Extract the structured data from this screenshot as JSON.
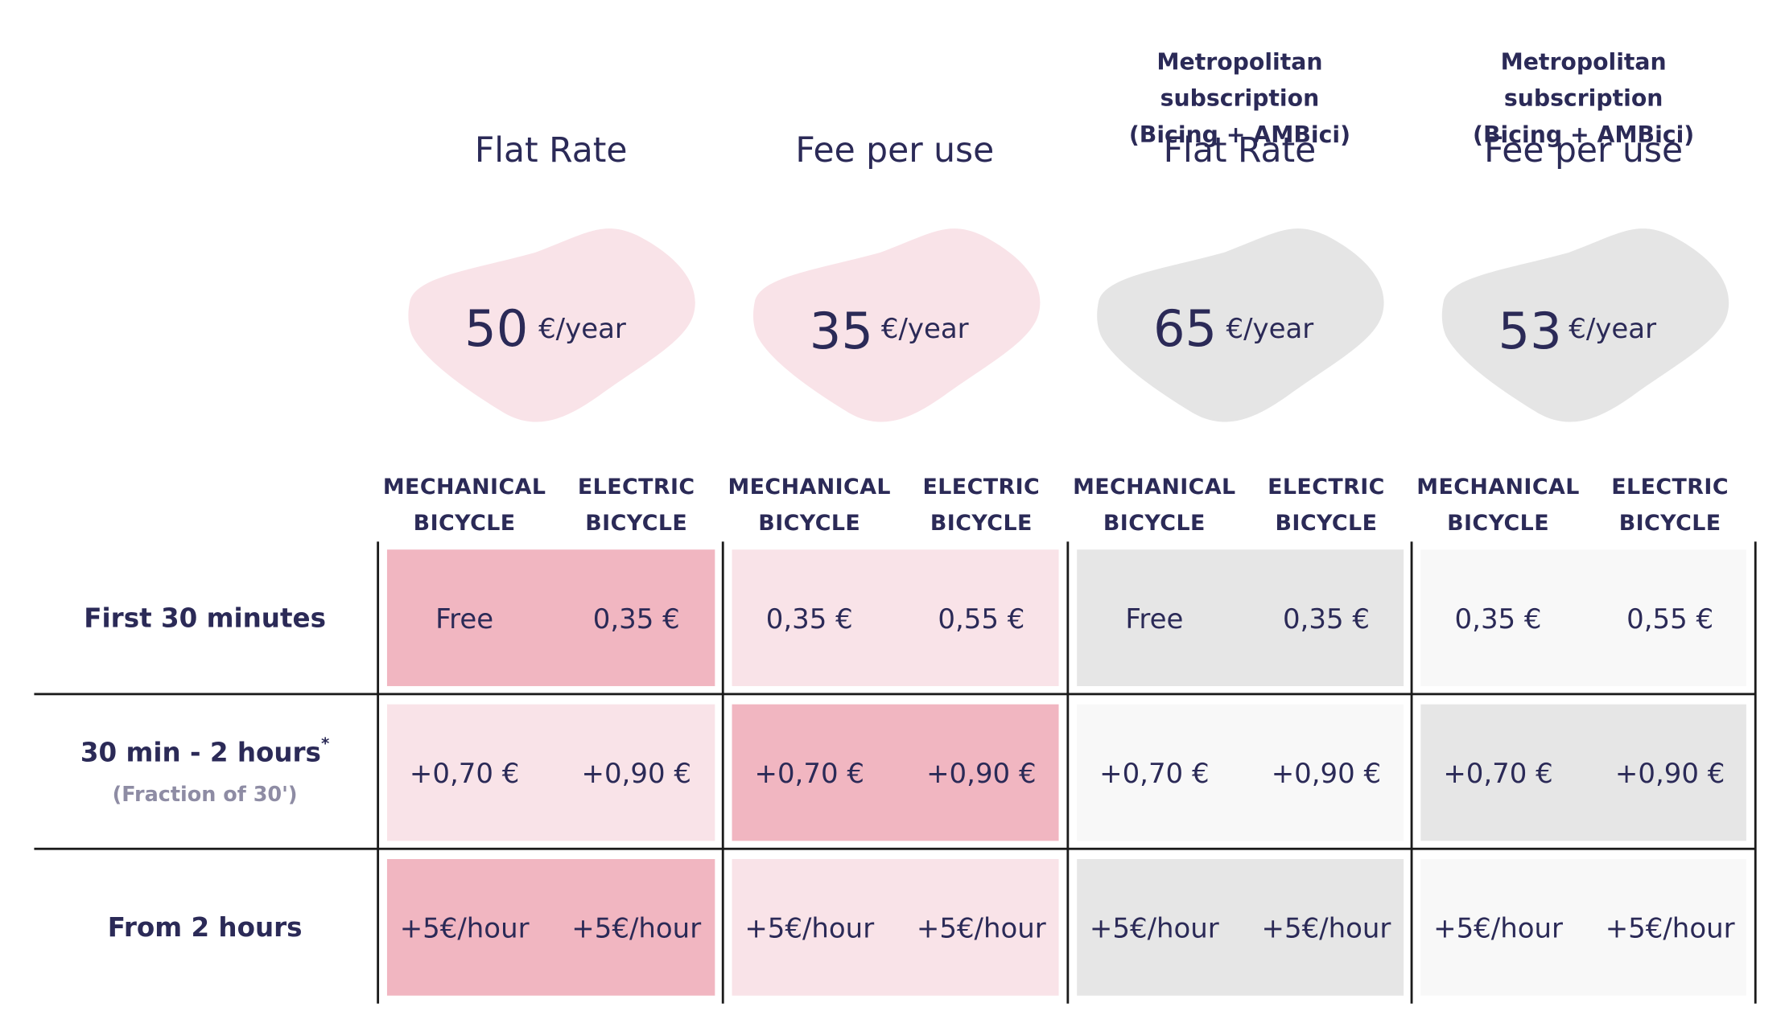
{
  "colors": {
    "text": "#2b2a57",
    "pink_strong": "#f1b6c1",
    "pink_light": "#f9e3e8",
    "gray": "#e6e6e6",
    "gray_light": "#f8f8f8",
    "blob_pink": "#f9e3e8",
    "blob_gray": "#e5e5e5"
  },
  "plans": [
    {
      "metro_line1": "",
      "metro_line2": "",
      "title": "Flat Rate",
      "price": "50",
      "unit": "€/year"
    },
    {
      "metro_line1": "",
      "metro_line2": "",
      "title": "Fee per use",
      "price": "35",
      "unit": "€/year"
    },
    {
      "metro_line1": "Metropolitan subscription",
      "metro_line2": "(Bicing + AMBici)",
      "title": "Flat Rate",
      "price": "65",
      "unit": "€/year"
    },
    {
      "metro_line1": "Metropolitan subscription",
      "metro_line2": "(Bicing + AMBici)",
      "title": "Fee per use",
      "price": "53",
      "unit": "€/year"
    }
  ],
  "bike_headers": {
    "mechanical_line1": "MECHANICAL",
    "mechanical_line2": "BICYCLE",
    "electric_line1": "ELECTRIC",
    "electric_line2": "BICYCLE"
  },
  "rows": [
    {
      "label": "First 30 minutes",
      "note": "",
      "asterisk": "",
      "values": [
        [
          "Free",
          "0,35 €"
        ],
        [
          "0,35 €",
          "0,55 €"
        ],
        [
          "Free",
          "0,35 €"
        ],
        [
          "0,35 €",
          "0,55 €"
        ]
      ]
    },
    {
      "label": "30 min - 2 hours",
      "note": "(Fraction of 30')",
      "asterisk": "*",
      "values": [
        [
          "+0,70 €",
          "+0,90 €"
        ],
        [
          "+0,70 €",
          "+0,90 €"
        ],
        [
          "+0,70 €",
          "+0,90 €"
        ],
        [
          "+0,70 €",
          "+0,90 €"
        ]
      ]
    },
    {
      "label": "From 2 hours",
      "note": "",
      "asterisk": "",
      "values": [
        [
          "+5€/hour",
          "+5€/hour"
        ],
        [
          "+5€/hour",
          "+5€/hour"
        ],
        [
          "+5€/hour",
          "+5€/hour"
        ],
        [
          "+5€/hour",
          "+5€/hour"
        ]
      ]
    }
  ]
}
